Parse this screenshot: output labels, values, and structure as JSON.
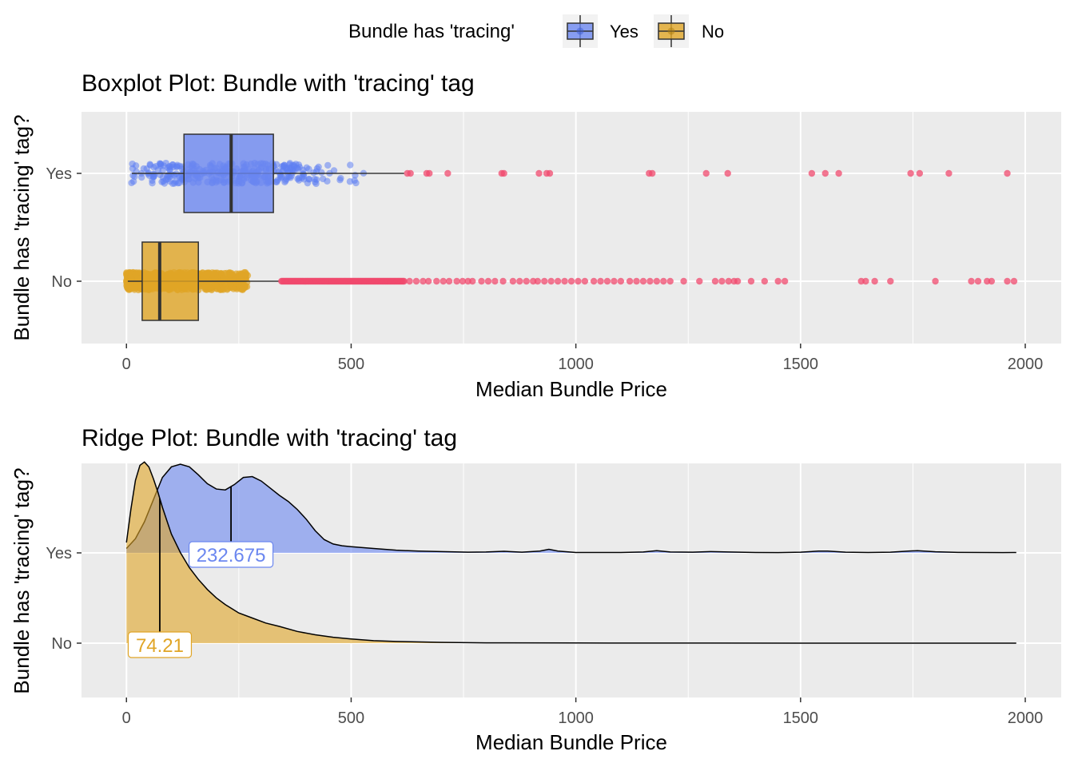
{
  "legend": {
    "title": "Bundle has 'tracing'",
    "items": [
      {
        "label": "Yes",
        "color": "#6b87f0"
      },
      {
        "label": "No",
        "color": "#e0a526"
      }
    ]
  },
  "colors": {
    "yes_fill": "#6b87f0",
    "no_fill": "#e0a526",
    "outlier": "#f04a6e",
    "panel_bg": "#ebebeb",
    "grid": "#ffffff"
  },
  "chart_data": [
    {
      "type": "boxplot",
      "title": "Boxplot Plot: Bundle with 'tracing' tag",
      "xlabel": "Median Bundle Price",
      "ylabel": "Bundle has 'tracing' tag?",
      "xlim": [
        -100,
        2080
      ],
      "x_ticks": [
        0,
        500,
        1000,
        1500,
        2000
      ],
      "categories": [
        "Yes",
        "No"
      ],
      "series": [
        {
          "name": "Yes",
          "min": 12,
          "q1": 128,
          "median": 233,
          "q3": 327,
          "max": 618,
          "jitter_range": [
            5,
            530
          ],
          "outliers": [
            625,
            632,
            668,
            674,
            715,
            835,
            840,
            918,
            935,
            942,
            1163,
            1170,
            1290,
            1338,
            1525,
            1555,
            1585,
            1745,
            1765,
            1830,
            1960
          ]
        },
        {
          "name": "No",
          "min": 3,
          "q1": 35,
          "median": 74,
          "q3": 160,
          "max": 340,
          "jitter_range": [
            0,
            270
          ],
          "outliers_dense_range": [
            345,
            620
          ],
          "outliers": [
            630,
            645,
            660,
            672,
            690,
            705,
            718,
            735,
            748,
            760,
            770,
            790,
            805,
            820,
            838,
            860,
            875,
            890,
            905,
            915,
            930,
            945,
            960,
            975,
            990,
            1005,
            1020,
            1040,
            1055,
            1070,
            1085,
            1100,
            1120,
            1135,
            1150,
            1165,
            1180,
            1195,
            1210,
            1240,
            1275,
            1310,
            1325,
            1340,
            1352,
            1360,
            1390,
            1420,
            1450,
            1465,
            1635,
            1645,
            1665,
            1700,
            1800,
            1880,
            1895,
            1915,
            1925,
            1960,
            1975
          ]
        }
      ]
    },
    {
      "type": "ridgeline",
      "title": "Ridge Plot: Bundle with 'tracing' tag",
      "xlabel": "Median Bundle Price",
      "ylabel": "Bundle has 'tracing' tag?",
      "xlim": [
        -100,
        2080
      ],
      "x_ticks": [
        0,
        500,
        1000,
        1500,
        2000
      ],
      "categories": [
        "Yes",
        "No"
      ],
      "series": [
        {
          "name": "Yes",
          "median_label": "232.675",
          "median": 232.675,
          "x": [
            0,
            20,
            40,
            60,
            80,
            100,
            120,
            140,
            160,
            180,
            200,
            220,
            240,
            260,
            280,
            300,
            320,
            340,
            360,
            380,
            400,
            420,
            440,
            460,
            480,
            500,
            550,
            600,
            650,
            700,
            760,
            800,
            840,
            880,
            920,
            940,
            960,
            1000,
            1050,
            1100,
            1150,
            1180,
            1210,
            1260,
            1300,
            1340,
            1400,
            1450,
            1500,
            1540,
            1560,
            1600,
            1650,
            1700,
            1740,
            1760,
            1800,
            1850,
            1900,
            1950,
            1980
          ],
          "density": [
            0.05,
            0.16,
            0.35,
            0.6,
            0.85,
            0.97,
            1.0,
            0.97,
            0.88,
            0.78,
            0.72,
            0.71,
            0.77,
            0.85,
            0.86,
            0.81,
            0.73,
            0.65,
            0.58,
            0.49,
            0.38,
            0.25,
            0.15,
            0.1,
            0.08,
            0.07,
            0.05,
            0.03,
            0.02,
            0.015,
            0.008,
            0.01,
            0.018,
            0.008,
            0.02,
            0.04,
            0.02,
            0.005,
            0.004,
            0.005,
            0.01,
            0.025,
            0.01,
            0.008,
            0.015,
            0.01,
            0.004,
            0.003,
            0.008,
            0.02,
            0.02,
            0.008,
            0.004,
            0.008,
            0.02,
            0.025,
            0.012,
            0.006,
            0.004,
            0.003,
            0.004
          ]
        },
        {
          "name": "No",
          "median_label": "74.21",
          "median": 74.21,
          "x": [
            0,
            10,
            20,
            30,
            40,
            50,
            60,
            70,
            80,
            90,
            100,
            120,
            140,
            160,
            180,
            200,
            220,
            250,
            280,
            310,
            340,
            380,
            420,
            460,
            500,
            550,
            600,
            700,
            800,
            1000,
            1500,
            1980
          ],
          "density": [
            0.6,
            0.8,
            0.97,
            1.06,
            1.08,
            1.05,
            0.98,
            0.9,
            0.81,
            0.73,
            0.65,
            0.54,
            0.45,
            0.38,
            0.32,
            0.27,
            0.23,
            0.18,
            0.15,
            0.12,
            0.1,
            0.07,
            0.05,
            0.035,
            0.025,
            0.015,
            0.01,
            0.005,
            0.002,
            0.001,
            0.0,
            0.0
          ]
        }
      ]
    }
  ]
}
